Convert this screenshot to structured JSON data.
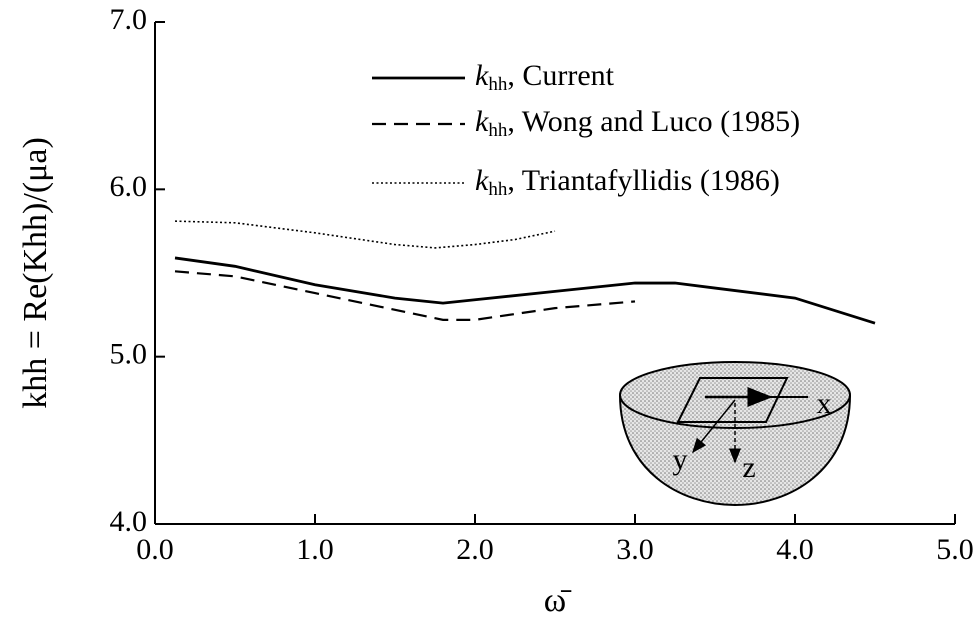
{
  "chart_data": {
    "type": "line",
    "x_label": "ω̄",
    "y_label": "khh = Re(Khh)/(μa)",
    "xlim": [
      0,
      5
    ],
    "ylim": [
      4,
      7
    ],
    "xticks": [
      {
        "value": 0,
        "label": "0.0"
      },
      {
        "value": 1,
        "label": "1.0"
      },
      {
        "value": 2,
        "label": "2.0"
      },
      {
        "value": 3,
        "label": "3.0"
      },
      {
        "value": 4,
        "label": "4.0"
      },
      {
        "value": 5,
        "label": "5.0"
      }
    ],
    "yticks": [
      {
        "value": 4,
        "label": "4.0"
      },
      {
        "value": 5,
        "label": "5.0"
      },
      {
        "value": 6,
        "label": "6.0"
      },
      {
        "value": 7,
        "label": "7.0"
      }
    ],
    "series": [
      {
        "name": "khh, Current",
        "color": "#000000",
        "style": "solid",
        "x": [
          0.125,
          0.5,
          1.0,
          1.5,
          1.8,
          2.0,
          2.5,
          3.0,
          3.25,
          3.5,
          4.0,
          4.5
        ],
        "values": [
          5.59,
          5.54,
          5.43,
          5.35,
          5.32,
          5.34,
          5.39,
          5.44,
          5.44,
          5.41,
          5.35,
          5.2
        ]
      },
      {
        "name": "khh, Wong and Luco (1985)",
        "color": "#000000",
        "style": "dashed",
        "x": [
          0.125,
          0.5,
          1.0,
          1.5,
          1.8,
          2.0,
          2.5,
          3.0
        ],
        "values": [
          5.51,
          5.48,
          5.38,
          5.28,
          5.22,
          5.22,
          5.29,
          5.33
        ]
      },
      {
        "name": "khh, Triantafyllidis (1986)",
        "color": "#000000",
        "style": "dotted",
        "x": [
          0.125,
          0.5,
          1.0,
          1.5,
          1.75,
          2.0,
          2.25,
          2.5
        ],
        "values": [
          5.81,
          5.8,
          5.74,
          5.67,
          5.65,
          5.67,
          5.7,
          5.75
        ]
      }
    ],
    "annotations": [
      "x",
      "y",
      "z"
    ]
  }
}
